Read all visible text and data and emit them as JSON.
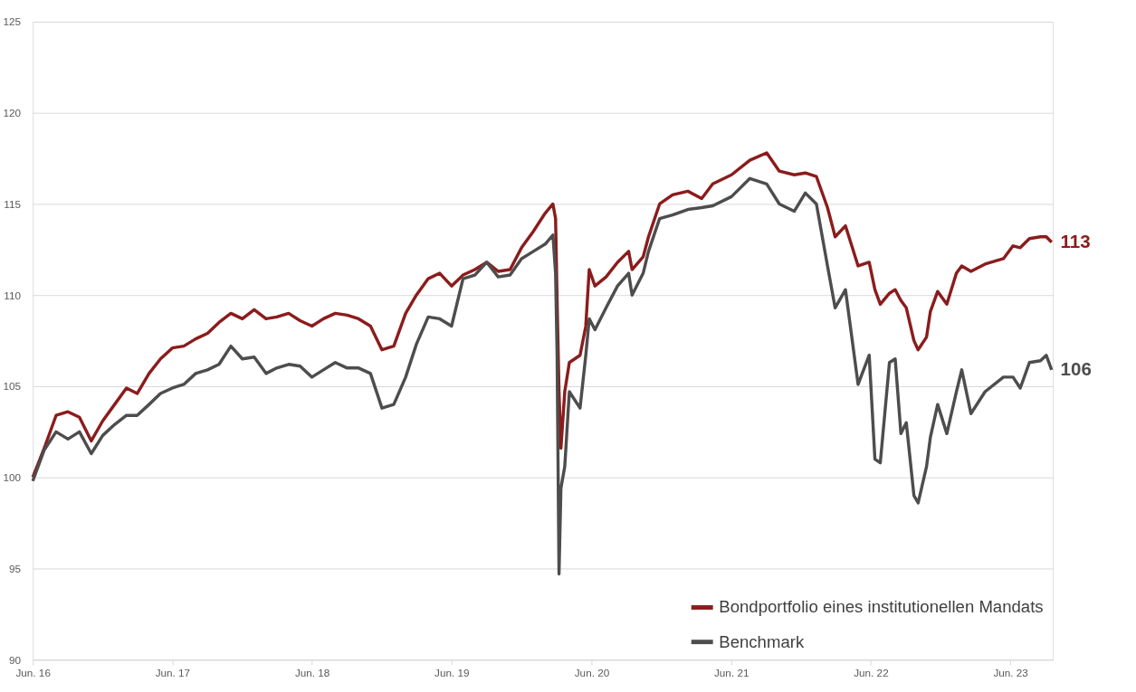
{
  "chart_data": {
    "type": "line",
    "x": [
      "2016-06-01",
      "2016-07-01",
      "2016-08-01",
      "2016-09-01",
      "2016-10-01",
      "2016-11-01",
      "2016-12-01",
      "2017-01-01",
      "2017-02-01",
      "2017-03-01",
      "2017-04-01",
      "2017-05-01",
      "2017-06-01",
      "2017-07-01",
      "2017-08-01",
      "2017-09-01",
      "2017-10-01",
      "2017-11-01",
      "2017-12-01",
      "2018-01-01",
      "2018-02-01",
      "2018-03-01",
      "2018-04-01",
      "2018-05-01",
      "2018-06-01",
      "2018-07-01",
      "2018-08-01",
      "2018-09-01",
      "2018-10-01",
      "2018-11-01",
      "2018-12-01",
      "2019-01-01",
      "2019-02-01",
      "2019-03-01",
      "2019-04-01",
      "2019-05-01",
      "2019-06-01",
      "2019-07-01",
      "2019-08-01",
      "2019-09-01",
      "2019-10-01",
      "2019-11-01",
      "2019-12-01",
      "2020-01-01",
      "2020-02-01",
      "2020-02-21",
      "2020-02-28",
      "2020-03-03",
      "2020-03-08",
      "2020-03-13",
      "2020-03-23",
      "2020-04-04",
      "2020-05-02",
      "2020-05-17",
      "2020-05-26",
      "2020-06-10",
      "2020-07-09",
      "2020-08-08",
      "2020-09-06",
      "2020-09-15",
      "2020-10-14",
      "2020-10-28",
      "2020-11-26",
      "2020-12-30",
      "2021-02-08",
      "2021-03-16",
      "2021-04-14",
      "2021-06-02",
      "2021-07-20",
      "2021-09-02",
      "2021-10-05",
      "2021-11-13",
      "2021-12-12",
      "2022-01-10",
      "2022-02-08",
      "2022-02-28",
      "2022-03-27",
      "2022-04-29",
      "2022-05-28",
      "2022-06-12",
      "2022-06-26",
      "2022-07-20",
      "2022-08-04",
      "2022-08-19",
      "2022-09-02",
      "2022-09-22",
      "2022-10-03",
      "2022-10-25",
      "2022-11-04",
      "2022-11-23",
      "2022-12-17",
      "2023-01-11",
      "2023-01-25",
      "2023-02-18",
      "2023-03-27",
      "2023-05-14",
      "2023-06-08",
      "2023-06-27",
      "2023-07-21",
      "2023-08-19",
      "2023-09-03",
      "2023-09-17"
    ],
    "series": [
      {
        "name": "Bondportfolio eines institutionellen Mandats",
        "color": "#8b1c1c",
        "values": [
          100.0,
          101.6,
          103.4,
          103.6,
          103.3,
          102.0,
          103.1,
          104.0,
          104.9,
          104.6,
          105.7,
          106.5,
          107.1,
          107.2,
          107.6,
          107.9,
          108.5,
          109.0,
          108.7,
          109.2,
          108.7,
          108.8,
          109.0,
          108.6,
          108.3,
          108.7,
          109.0,
          108.9,
          108.7,
          108.3,
          107.0,
          107.2,
          109.0,
          110.0,
          110.9,
          111.2,
          110.5,
          111.1,
          111.4,
          111.8,
          111.3,
          111.4,
          112.6,
          113.5,
          114.5,
          115.0,
          114.2,
          109.7,
          104.7,
          101.6,
          104.7,
          106.3,
          106.7,
          108.3,
          111.4,
          110.5,
          111.0,
          111.8,
          112.4,
          111.4,
          112.1,
          113.2,
          115.0,
          115.5,
          115.7,
          115.3,
          116.1,
          116.6,
          117.4,
          117.8,
          116.8,
          116.6,
          116.7,
          116.5,
          114.8,
          113.2,
          113.8,
          111.6,
          111.8,
          110.3,
          109.5,
          110.1,
          110.3,
          109.7,
          109.3,
          107.5,
          107.0,
          107.7,
          109.1,
          110.2,
          109.5,
          111.2,
          111.6,
          111.3,
          111.7,
          112.0,
          112.7,
          112.6,
          113.1,
          113.2,
          113.2,
          112.9
        ]
      },
      {
        "name": "Benchmark",
        "color": "#4d4d4d",
        "values": [
          99.8,
          101.5,
          102.5,
          102.1,
          102.5,
          101.3,
          102.3,
          102.9,
          103.4,
          103.4,
          104.0,
          104.6,
          104.9,
          105.1,
          105.7,
          105.9,
          106.2,
          107.2,
          106.5,
          106.6,
          105.7,
          106.0,
          106.2,
          106.1,
          105.5,
          105.9,
          106.3,
          106.0,
          106.0,
          105.7,
          103.8,
          104.0,
          105.5,
          107.3,
          108.8,
          108.7,
          108.3,
          110.9,
          111.1,
          111.8,
          111.0,
          111.1,
          112.0,
          112.4,
          112.8,
          113.3,
          111.2,
          106.7,
          94.7,
          99.4,
          100.6,
          104.7,
          103.8,
          106.7,
          108.7,
          108.1,
          109.3,
          110.5,
          111.2,
          110.0,
          111.2,
          112.4,
          114.2,
          114.4,
          114.7,
          114.8,
          114.9,
          115.4,
          116.4,
          116.1,
          115.0,
          114.6,
          115.6,
          115.0,
          111.6,
          109.3,
          110.3,
          105.1,
          106.7,
          101.0,
          100.8,
          106.3,
          106.5,
          102.4,
          103.0,
          99.0,
          98.6,
          100.6,
          102.2,
          104.0,
          102.4,
          104.7,
          105.9,
          103.5,
          104.7,
          105.5,
          105.5,
          104.9,
          106.3,
          106.4,
          106.7,
          105.9
        ]
      }
    ],
    "xlim": [
      "2016-06-01",
      "2023-09-20"
    ],
    "xticks": [
      {
        "value": "2016-06-01",
        "label": "Jun. 16"
      },
      {
        "value": "2017-06-01",
        "label": "Jun. 17"
      },
      {
        "value": "2018-06-01",
        "label": "Jun. 18"
      },
      {
        "value": "2019-06-01",
        "label": "Jun. 19"
      },
      {
        "value": "2020-06-01",
        "label": "Jun. 20"
      },
      {
        "value": "2021-06-01",
        "label": "Jun. 21"
      },
      {
        "value": "2022-06-01",
        "label": "Jun. 22"
      },
      {
        "value": "2023-06-01",
        "label": "Jun. 23"
      }
    ],
    "ylim": [
      90,
      125
    ],
    "yticks": [
      90,
      95,
      100,
      105,
      110,
      115,
      120,
      125
    ],
    "annotations": [
      {
        "text": "113",
        "x": "2023-09-17",
        "y": 112.9
      },
      {
        "text": "106",
        "x": "2023-09-17",
        "y": 105.9
      }
    ],
    "grid": "y",
    "legend": "bottom right",
    "marker": "none",
    "line_style": "solid"
  }
}
